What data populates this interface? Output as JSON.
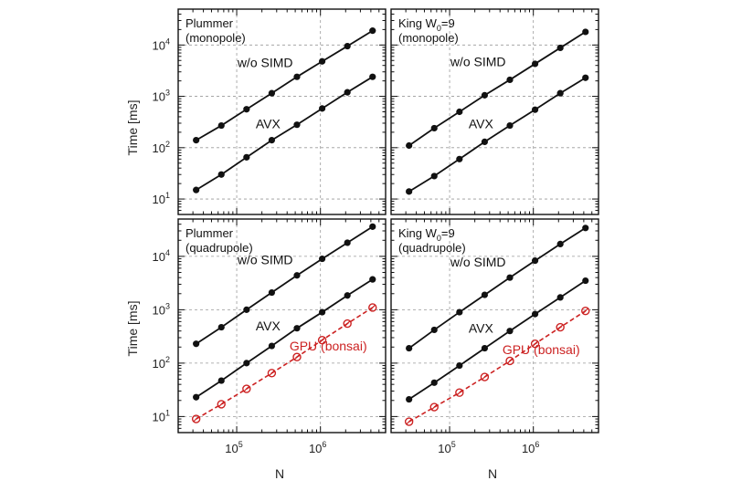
{
  "chart_data": {
    "type": "line",
    "x_axis_label": "N",
    "y_axis_label": "Time [ms]",
    "x_scale": "log",
    "y_scale": "log",
    "xlim": [
      20000,
      6000000
    ],
    "ylim": [
      5,
      50000
    ],
    "x_tick_labels": [
      {
        "base": "10",
        "exp": "5",
        "value": 100000
      },
      {
        "base": "10",
        "exp": "6",
        "value": 1000000
      }
    ],
    "y_tick_labels": [
      {
        "base": "10",
        "exp": "1",
        "value": 10
      },
      {
        "base": "10",
        "exp": "2",
        "value": 100
      },
      {
        "base": "10",
        "exp": "3",
        "value": 1000
      },
      {
        "base": "10",
        "exp": "4",
        "value": 10000
      }
    ],
    "grid": true,
    "colors": {
      "cpu": "#111111",
      "gpu": "#cc2222"
    },
    "x": [
      32768,
      65536,
      131072,
      262144,
      524288,
      1048576,
      2097152,
      4194304
    ],
    "panels": [
      {
        "id": "top-left",
        "label_line1": "Plummer",
        "label_line1_sub": "",
        "label_line1_suffix": "",
        "label_line2": "(monopole)",
        "series": [
          {
            "name": "w/o SIMD",
            "style": "cpu",
            "values": [
              140,
              270,
              560,
              1150,
              2400,
              4800,
              9500,
              19000
            ]
          },
          {
            "name": "AVX",
            "style": "cpu",
            "values": [
              15,
              30,
              65,
              140,
              280,
              580,
              1200,
              2400
            ]
          }
        ]
      },
      {
        "id": "top-right",
        "label_line1": "King W",
        "label_line1_sub": "0",
        "label_line1_suffix": "=9",
        "label_line2": "(monopole)",
        "series": [
          {
            "name": "w/o SIMD",
            "style": "cpu",
            "values": [
              110,
              240,
              500,
              1050,
              2100,
              4300,
              8800,
              18000
            ]
          },
          {
            "name": "AVX",
            "style": "cpu",
            "values": [
              14,
              28,
              60,
              130,
              270,
              550,
              1150,
              2300
            ]
          }
        ]
      },
      {
        "id": "bottom-left",
        "label_line1": "Plummer",
        "label_line1_sub": "",
        "label_line1_suffix": "",
        "label_line2": "(quadrupole)",
        "series": [
          {
            "name": "w/o SIMD",
            "style": "cpu",
            "values": [
              230,
              470,
              1000,
              2100,
              4400,
              9000,
              18000,
              36000
            ]
          },
          {
            "name": "AVX",
            "style": "cpu",
            "values": [
              23,
              47,
              100,
              210,
              450,
              900,
              1850,
              3700
            ]
          },
          {
            "name": "GPU (bonsai)",
            "style": "gpu",
            "values": [
              9,
              17,
              33,
              65,
              130,
              270,
              550,
              1100
            ]
          }
        ]
      },
      {
        "id": "bottom-right",
        "label_line1": "King W",
        "label_line1_sub": "0",
        "label_line1_suffix": "=9",
        "label_line2": "(quadrupole)",
        "series": [
          {
            "name": "w/o SIMD",
            "style": "cpu",
            "values": [
              190,
              420,
              900,
              1900,
              4000,
              8300,
              17000,
              34000
            ]
          },
          {
            "name": "AVX",
            "style": "cpu",
            "values": [
              21,
              43,
              90,
              190,
              400,
              830,
              1700,
              3500
            ]
          },
          {
            "name": "GPU (bonsai)",
            "style": "gpu",
            "values": [
              8,
              15,
              28,
              55,
              110,
              230,
              470,
              950
            ]
          }
        ]
      }
    ]
  }
}
